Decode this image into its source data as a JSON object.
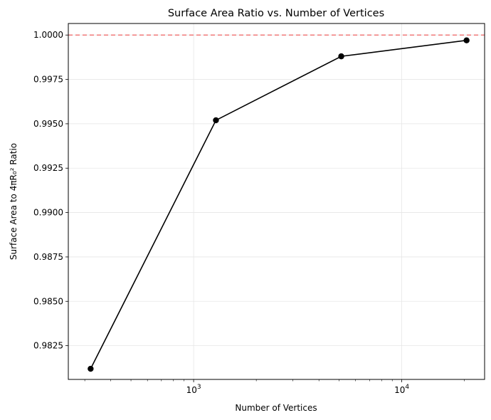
{
  "chart_data": {
    "type": "line",
    "title": "Surface Area Ratio vs. Number of Vertices",
    "xlabel": "Number of Vertices",
    "ylabel": "Surface Area to 4πR₀² Ratio",
    "x_scale": "log",
    "xlim": [
      250,
      25000
    ],
    "ylim": [
      0.9806,
      1.00065
    ],
    "x_ticks": [
      {
        "value": 1000,
        "base": "10",
        "exp": "3"
      },
      {
        "value": 10000,
        "base": "10",
        "exp": "4"
      }
    ],
    "y_ticks": [
      {
        "value": 0.9825,
        "label": "0.9825"
      },
      {
        "value": 0.985,
        "label": "0.9850"
      },
      {
        "value": 0.9875,
        "label": "0.9875"
      },
      {
        "value": 0.99,
        "label": "0.9900"
      },
      {
        "value": 0.9925,
        "label": "0.9925"
      },
      {
        "value": 0.995,
        "label": "0.9950"
      },
      {
        "value": 0.9975,
        "label": "0.9975"
      },
      {
        "value": 1.0,
        "label": "1.0000"
      }
    ],
    "grid": true,
    "series": [
      {
        "x": [
          320,
          1280,
          5120,
          20480
        ],
        "y": [
          0.9812,
          0.9952,
          0.9988,
          0.9997
        ],
        "color": "#000000",
        "marker": "circle"
      }
    ],
    "reference_line": {
      "y": 1.0,
      "color": "#f07a7a",
      "style": "dashed"
    }
  }
}
